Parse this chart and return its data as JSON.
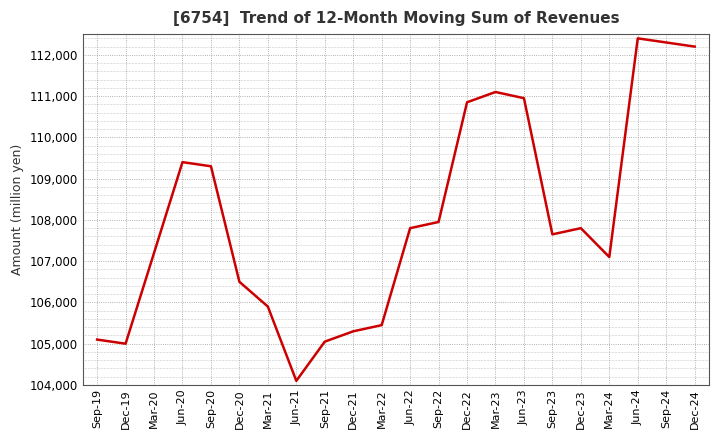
{
  "title": "[6754]  Trend of 12-Month Moving Sum of Revenues",
  "ylabel": "Amount (million yen)",
  "background_color": "#ffffff",
  "plot_bg_color": "#ffffff",
  "line_color": "#cc0000",
  "grid_color": "#999999",
  "ylim": [
    104000,
    112500
  ],
  "yticks": [
    104000,
    105000,
    106000,
    107000,
    108000,
    109000,
    110000,
    111000,
    112000
  ],
  "x_labels": [
    "Sep-19",
    "Dec-19",
    "Mar-20",
    "Jun-20",
    "Sep-20",
    "Dec-20",
    "Mar-21",
    "Jun-21",
    "Sep-21",
    "Dec-21",
    "Mar-22",
    "Jun-22",
    "Sep-22",
    "Dec-22",
    "Mar-23",
    "Jun-23",
    "Sep-23",
    "Dec-23",
    "Mar-24",
    "Jun-24",
    "Sep-24",
    "Dec-24"
  ],
  "values": [
    105100,
    105000,
    107200,
    109400,
    109300,
    106500,
    105900,
    104100,
    105050,
    105300,
    105450,
    107800,
    107950,
    110850,
    111100,
    110950,
    107650,
    107800,
    107100,
    112400,
    112300,
    112200
  ]
}
